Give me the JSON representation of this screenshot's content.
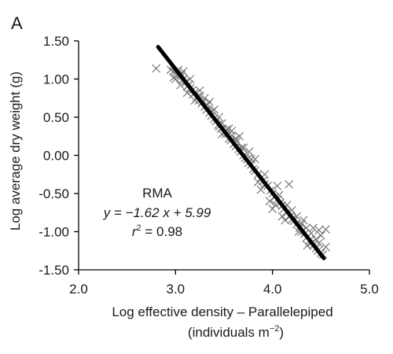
{
  "chart_data": {
    "type": "scatter",
    "panel_label": "A",
    "xlabel_line1": "Log effective density – Parallelepiped",
    "xlabel_line2_prefix": "(individuals m",
    "xlabel_line2_exp": "−2",
    "xlabel_line2_suffix": ")",
    "ylabel": "Log average dry weight (g)",
    "xlim": [
      2.0,
      5.0
    ],
    "ylim": [
      -1.5,
      1.5
    ],
    "x_ticks": [
      "2.0",
      "3.0",
      "4.0",
      "5.0"
    ],
    "y_ticks": [
      "1.50",
      "1.00",
      "0.50",
      "0.00",
      "-0.50",
      "-1.00",
      "-1.50"
    ],
    "annotation": {
      "method": "RMA",
      "equation": "y = −1.62 x + 5.99",
      "r2": "r2 = 0.98"
    },
    "fit_line": {
      "slope": -1.62,
      "intercept": 5.99,
      "x_range": [
        2.82,
        4.53
      ]
    },
    "marker": "x",
    "points": [
      [
        2.8,
        1.14
      ],
      [
        2.95,
        1.12
      ],
      [
        2.98,
        1.1
      ],
      [
        3.0,
        1.08
      ],
      [
        3.02,
        1.05
      ],
      [
        3.03,
        1.12
      ],
      [
        3.05,
        1.02
      ],
      [
        3.06,
        1.06
      ],
      [
        3.07,
        0.98
      ],
      [
        3.08,
        1.0
      ],
      [
        3.1,
        0.95
      ],
      [
        3.11,
        0.97
      ],
      [
        3.12,
        0.9
      ],
      [
        3.14,
        0.93
      ],
      [
        3.15,
        0.88
      ],
      [
        3.17,
        0.85
      ],
      [
        3.18,
        0.8
      ],
      [
        3.2,
        0.82
      ],
      [
        3.22,
        0.76
      ],
      [
        3.24,
        0.72
      ],
      [
        3.25,
        0.78
      ],
      [
        3.27,
        0.68
      ],
      [
        3.28,
        0.7
      ],
      [
        3.3,
        0.64
      ],
      [
        3.32,
        0.6
      ],
      [
        3.33,
        0.66
      ],
      [
        3.35,
        0.56
      ],
      [
        3.37,
        0.52
      ],
      [
        3.38,
        0.58
      ],
      [
        3.4,
        0.48
      ],
      [
        3.42,
        0.45
      ],
      [
        3.44,
        0.4
      ],
      [
        3.45,
        0.38
      ],
      [
        3.47,
        0.35
      ],
      [
        3.48,
        0.42
      ],
      [
        3.5,
        0.3
      ],
      [
        3.52,
        0.28
      ],
      [
        3.53,
        0.34
      ],
      [
        3.55,
        0.22
      ],
      [
        3.57,
        0.2
      ],
      [
        3.58,
        0.26
      ],
      [
        3.6,
        0.15
      ],
      [
        3.62,
        0.12
      ],
      [
        3.63,
        0.18
      ],
      [
        3.65,
        0.08
      ],
      [
        3.67,
        0.05
      ],
      [
        3.68,
        0.1
      ],
      [
        3.7,
        0.0
      ],
      [
        3.72,
        -0.03
      ],
      [
        3.74,
        -0.05
      ],
      [
        3.75,
        -0.1
      ],
      [
        3.78,
        -0.12
      ],
      [
        3.8,
        -0.18
      ],
      [
        3.82,
        -0.2
      ],
      [
        3.85,
        -0.25
      ],
      [
        3.88,
        -0.3
      ],
      [
        3.9,
        -0.34
      ],
      [
        3.92,
        -0.38
      ],
      [
        3.95,
        -0.4
      ],
      [
        3.98,
        -0.46
      ],
      [
        4.0,
        -0.5
      ],
      [
        4.02,
        -0.55
      ],
      [
        4.05,
        -0.58
      ],
      [
        4.08,
        -0.62
      ],
      [
        4.1,
        -0.66
      ],
      [
        4.12,
        -0.7
      ],
      [
        4.15,
        -0.75
      ],
      [
        4.18,
        -0.8
      ],
      [
        4.2,
        -0.84
      ],
      [
        4.22,
        -0.86
      ],
      [
        4.25,
        -0.9
      ],
      [
        4.28,
        -0.95
      ],
      [
        4.3,
        -1.0
      ],
      [
        4.33,
        -1.03
      ],
      [
        4.35,
        -1.08
      ],
      [
        4.38,
        -1.12
      ],
      [
        4.4,
        -1.15
      ],
      [
        4.42,
        -1.18
      ],
      [
        4.45,
        -1.22
      ],
      [
        4.47,
        -1.25
      ],
      [
        4.5,
        -1.28
      ],
      [
        4.52,
        -1.3
      ],
      [
        4.55,
        -0.97
      ],
      [
        4.5,
        -1.05
      ],
      [
        4.48,
        -0.98
      ],
      [
        4.45,
        -1.1
      ],
      [
        4.4,
        -1.02
      ],
      [
        4.35,
        -0.95
      ],
      [
        4.3,
        -0.9
      ],
      [
        4.25,
        -0.8
      ],
      [
        4.15,
        -0.65
      ],
      [
        4.05,
        -0.4
      ],
      [
        3.97,
        -0.6
      ],
      [
        3.92,
        -0.25
      ],
      [
        3.85,
        -0.35
      ],
      [
        3.78,
        -0.05
      ],
      [
        3.7,
        0.1
      ],
      [
        3.62,
        0.22
      ],
      [
        3.55,
        0.35
      ],
      [
        3.45,
        0.5
      ],
      [
        3.35,
        0.7
      ],
      [
        3.25,
        0.85
      ],
      [
        3.15,
        1.0
      ],
      [
        3.08,
        1.1
      ],
      [
        3.0,
        1.0
      ],
      [
        4.17,
        -0.38
      ],
      [
        4.1,
        -0.8
      ],
      [
        4.0,
        -0.7
      ],
      [
        3.88,
        -0.45
      ],
      [
        3.82,
        -0.05
      ],
      [
        3.76,
        0.05
      ],
      [
        3.66,
        0.25
      ],
      [
        3.58,
        0.32
      ],
      [
        3.48,
        0.28
      ],
      [
        3.4,
        0.6
      ],
      [
        3.3,
        0.75
      ],
      [
        3.2,
        0.72
      ],
      [
        3.12,
        0.82
      ],
      [
        3.05,
        0.92
      ],
      [
        2.98,
        1.02
      ],
      [
        4.55,
        -1.2
      ],
      [
        4.48,
        -1.15
      ],
      [
        4.42,
        -0.95
      ],
      [
        4.36,
        -1.18
      ],
      [
        4.32,
        -0.85
      ],
      [
        4.27,
        -1.0
      ],
      [
        4.2,
        -0.72
      ],
      [
        4.13,
        -0.85
      ],
      [
        4.07,
        -0.52
      ],
      [
        4.03,
        -0.65
      ]
    ]
  }
}
